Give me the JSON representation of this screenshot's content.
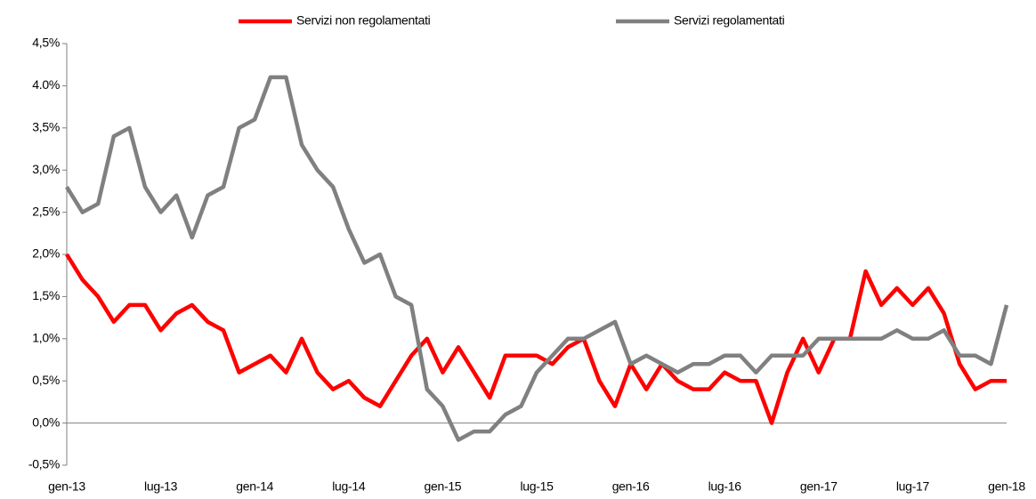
{
  "chart_data": {
    "type": "line",
    "categories": [
      "gen-13",
      null,
      null,
      null,
      null,
      null,
      "lug-13",
      null,
      null,
      null,
      null,
      null,
      "gen-14",
      null,
      null,
      null,
      null,
      null,
      "lug-14",
      null,
      null,
      null,
      null,
      null,
      "gen-15",
      null,
      null,
      null,
      null,
      null,
      "lug-15",
      null,
      null,
      null,
      null,
      null,
      "gen-16",
      null,
      null,
      null,
      null,
      null,
      "lug-16",
      null,
      null,
      null,
      null,
      null,
      "gen-17",
      null,
      null,
      null,
      null,
      null,
      "lug-17",
      null,
      null,
      null,
      null,
      null,
      "gen-18"
    ],
    "series": [
      {
        "name": "Servizi non regolamentati",
        "color": "#ff0000",
        "values": [
          2.0,
          1.7,
          1.5,
          1.2,
          1.4,
          1.4,
          1.1,
          1.3,
          1.4,
          1.2,
          1.1,
          0.6,
          0.7,
          0.8,
          0.6,
          1.0,
          0.6,
          0.4,
          0.5,
          0.3,
          0.2,
          0.5,
          0.8,
          1.0,
          0.6,
          0.9,
          0.6,
          0.3,
          0.8,
          0.8,
          0.8,
          0.7,
          0.9,
          1.0,
          0.5,
          0.2,
          0.7,
          0.4,
          0.7,
          0.5,
          0.4,
          0.4,
          0.6,
          0.5,
          0.5,
          0.0,
          0.6,
          1.0,
          0.6,
          1.0,
          1.0,
          1.8,
          1.4,
          1.6,
          1.4,
          1.6,
          1.3,
          0.7,
          0.4,
          0.5,
          0.5
        ]
      },
      {
        "name": "Servizi regolamentati",
        "color": "#808080",
        "values": [
          2.8,
          2.5,
          2.6,
          3.4,
          3.5,
          2.8,
          2.5,
          2.7,
          2.2,
          2.7,
          2.8,
          3.5,
          3.6,
          4.1,
          4.1,
          3.3,
          3.0,
          2.8,
          2.3,
          1.9,
          2.0,
          1.5,
          1.4,
          0.4,
          0.2,
          -0.2,
          -0.1,
          -0.1,
          0.1,
          0.2,
          0.6,
          0.8,
          1.0,
          1.0,
          1.1,
          1.2,
          0.7,
          0.8,
          0.7,
          0.6,
          0.7,
          0.7,
          0.8,
          0.8,
          0.6,
          0.8,
          0.8,
          0.8,
          1.0,
          1.0,
          1.0,
          1.0,
          1.0,
          1.1,
          1.0,
          1.0,
          1.1,
          0.8,
          0.8,
          0.7,
          1.4
        ]
      }
    ],
    "ylim": [
      -0.5,
      4.5
    ],
    "yticks": [
      {
        "value": -0.5,
        "label": "-0,5%"
      },
      {
        "value": 0,
        "label": "0,0%"
      },
      {
        "value": 0.5,
        "label": "0,5%"
      },
      {
        "value": 1,
        "label": "1,0%"
      },
      {
        "value": 1.5,
        "label": "1,5%"
      },
      {
        "value": 2,
        "label": "2,0%"
      },
      {
        "value": 2.5,
        "label": "2,5%"
      },
      {
        "value": 3,
        "label": "3,0%"
      },
      {
        "value": 3.5,
        "label": "3,5%"
      },
      {
        "value": 4,
        "label": "4.0%"
      },
      {
        "value": 4.5,
        "label": "4,5%"
      }
    ],
    "grid": false,
    "legend": "top"
  }
}
